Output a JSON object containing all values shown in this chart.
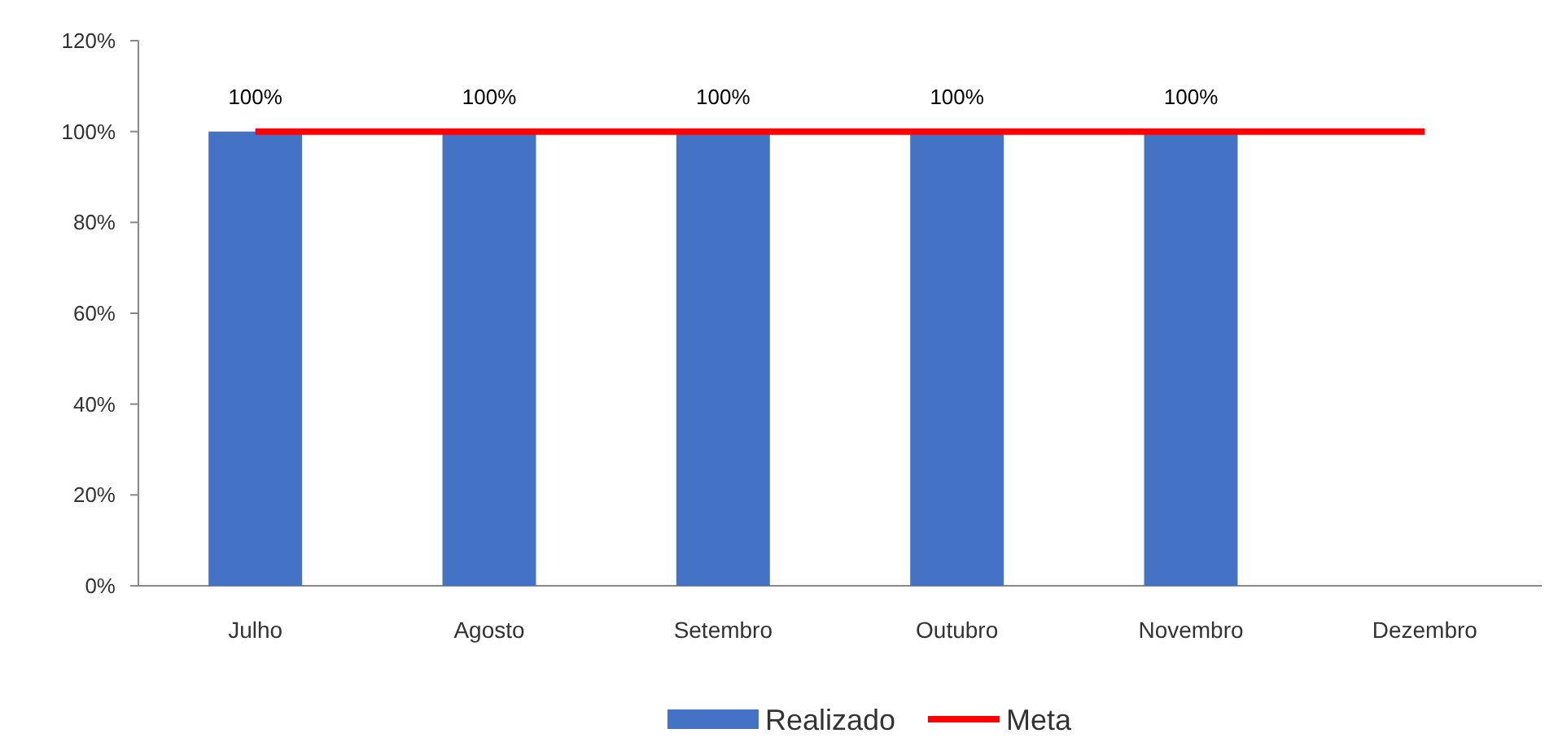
{
  "chart_data": {
    "type": "bar",
    "categories": [
      "Julho",
      "Agosto",
      "Setembro",
      "Outubro",
      "Novembro",
      "Dezembro"
    ],
    "series": [
      {
        "name": "Realizado",
        "color": "#4472c4",
        "values": [
          100,
          100,
          100,
          100,
          100,
          null
        ],
        "value_labels": [
          "100%",
          "100%",
          "100%",
          "100%",
          "100%",
          null
        ]
      },
      {
        "name": "Meta",
        "type": "line",
        "color": "#ff0000",
        "values": [
          100,
          100,
          100,
          100,
          100,
          100
        ]
      }
    ],
    "ylim": [
      0,
      120
    ],
    "yticks": [
      {
        "value": 0,
        "label": "0%"
      },
      {
        "value": 20,
        "label": "20%"
      },
      {
        "value": 40,
        "label": "40%"
      },
      {
        "value": 60,
        "label": "60%"
      },
      {
        "value": 80,
        "label": "80%"
      },
      {
        "value": 100,
        "label": "100%"
      },
      {
        "value": 120,
        "label": "120%"
      }
    ],
    "grid": false,
    "legend": "bottom"
  }
}
